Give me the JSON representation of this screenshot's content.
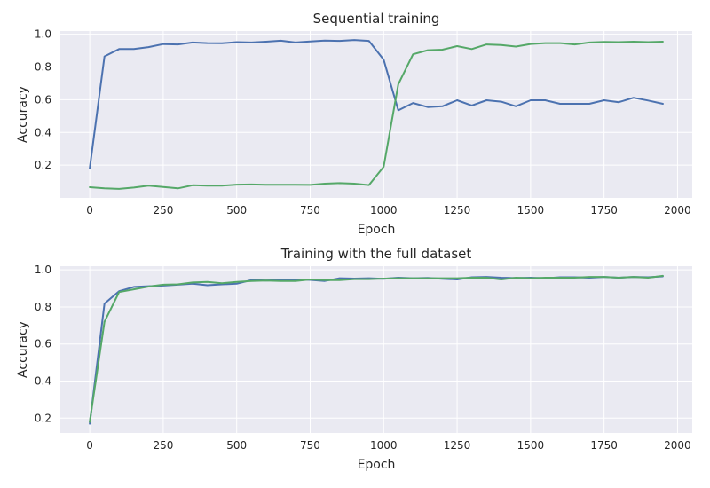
{
  "colors": {
    "plot_background": "#eaeaf2",
    "grid": "#ffffff",
    "text": "#262626",
    "series_blue": "#4c72b0",
    "series_green": "#55a868"
  },
  "chart_data": [
    {
      "type": "line",
      "title": "Sequential training",
      "xlabel": "Epoch",
      "ylabel": "Accuracy",
      "xlim": [
        -100,
        2050
      ],
      "ylim": [
        0.0,
        1.02
      ],
      "xticks": [
        0,
        250,
        500,
        750,
        1000,
        1250,
        1500,
        1750,
        2000
      ],
      "yticks": [
        0.2,
        0.4,
        0.6,
        0.8,
        1.0
      ],
      "grid": true,
      "legend": "none",
      "x": [
        0,
        50,
        100,
        150,
        200,
        250,
        300,
        350,
        400,
        450,
        500,
        550,
        600,
        650,
        700,
        750,
        800,
        850,
        900,
        950,
        1000,
        1050,
        1100,
        1150,
        1200,
        1250,
        1300,
        1350,
        1400,
        1450,
        1500,
        1550,
        1600,
        1650,
        1700,
        1750,
        1800,
        1850,
        1900,
        1950
      ],
      "series": [
        {
          "color": "#4c72b0",
          "values": [
            0.18,
            0.865,
            0.91,
            0.91,
            0.922,
            0.94,
            0.938,
            0.95,
            0.946,
            0.945,
            0.952,
            0.95,
            0.955,
            0.961,
            0.95,
            0.956,
            0.962,
            0.96,
            0.965,
            0.96,
            0.845,
            0.535,
            0.58,
            0.555,
            0.56,
            0.597,
            0.565,
            0.597,
            0.588,
            0.56,
            0.597,
            0.597,
            0.575,
            0.575,
            0.575,
            0.597,
            0.585,
            0.612,
            0.595,
            0.575
          ]
        },
        {
          "color": "#55a868",
          "values": [
            0.065,
            0.058,
            0.055,
            0.063,
            0.075,
            0.067,
            0.058,
            0.077,
            0.075,
            0.075,
            0.081,
            0.082,
            0.08,
            0.08,
            0.08,
            0.079,
            0.087,
            0.09,
            0.087,
            0.078,
            0.19,
            0.695,
            0.878,
            0.903,
            0.906,
            0.928,
            0.91,
            0.938,
            0.935,
            0.925,
            0.941,
            0.946,
            0.946,
            0.938,
            0.95,
            0.954,
            0.952,
            0.955,
            0.952,
            0.955
          ]
        }
      ]
    },
    {
      "type": "line",
      "title": "Training with the full dataset",
      "xlabel": "Epoch",
      "ylabel": "Accuracy",
      "xlim": [
        -100,
        2050
      ],
      "ylim": [
        0.12,
        1.02
      ],
      "xticks": [
        0,
        250,
        500,
        750,
        1000,
        1250,
        1500,
        1750,
        2000
      ],
      "yticks": [
        0.2,
        0.4,
        0.6,
        0.8,
        1.0
      ],
      "grid": true,
      "legend": "none",
      "x": [
        0,
        50,
        100,
        150,
        200,
        250,
        300,
        350,
        400,
        450,
        500,
        550,
        600,
        650,
        700,
        750,
        800,
        850,
        900,
        950,
        1000,
        1050,
        1100,
        1150,
        1200,
        1250,
        1300,
        1350,
        1400,
        1450,
        1500,
        1550,
        1600,
        1650,
        1700,
        1750,
        1800,
        1850,
        1900,
        1950
      ],
      "series": [
        {
          "color": "#4c72b0",
          "values": [
            0.17,
            0.818,
            0.885,
            0.908,
            0.912,
            0.915,
            0.92,
            0.925,
            0.917,
            0.922,
            0.925,
            0.945,
            0.943,
            0.945,
            0.948,
            0.946,
            0.94,
            0.955,
            0.953,
            0.955,
            0.952,
            0.958,
            0.955,
            0.957,
            0.952,
            0.948,
            0.96,
            0.962,
            0.958,
            0.956,
            0.958,
            0.955,
            0.96,
            0.96,
            0.958,
            0.962,
            0.958,
            0.962,
            0.96,
            0.965
          ]
        },
        {
          "color": "#55a868",
          "values": [
            0.18,
            0.72,
            0.88,
            0.895,
            0.91,
            0.92,
            0.922,
            0.932,
            0.935,
            0.928,
            0.935,
            0.94,
            0.942,
            0.94,
            0.94,
            0.948,
            0.945,
            0.945,
            0.95,
            0.95,
            0.953,
            0.955,
            0.955,
            0.955,
            0.955,
            0.955,
            0.958,
            0.958,
            0.948,
            0.958,
            0.955,
            0.958,
            0.958,
            0.958,
            0.962,
            0.962,
            0.958,
            0.962,
            0.958,
            0.968
          ]
        }
      ]
    }
  ]
}
